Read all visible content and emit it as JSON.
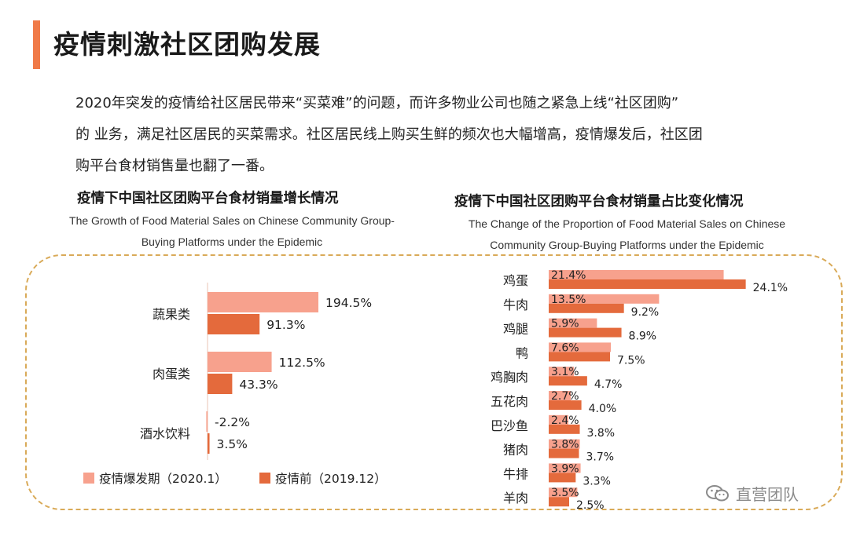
{
  "header": {
    "title": "疫情刺激社区团购发展"
  },
  "intro": {
    "lines": [
      "2020年突发的疫情给社区居民带来“买菜难”的问题，而许多物业公司也随之紧急上线“社区团购”",
      "的 业务，满足社区居民的买菜需求。社区居民线上购买生鲜的频次也大幅增高，疫情爆发后，社区团",
      "购平台食材销售量也翻了一番。"
    ]
  },
  "colors": {
    "accent": "#f07a48",
    "series_light": "#f7a18d",
    "series_dark": "#e46a3c",
    "dash": "#d9aa58"
  },
  "chart_data": [
    {
      "type": "bar",
      "orientation": "horizontal",
      "title": "疫情下中国社区团购平台食材销量增长情况",
      "subtitle": [
        "The Growth of Food Material Sales on Chinese Community Group-",
        "Buying Platforms under the Epidemic"
      ],
      "categories": [
        "蔬果类",
        "肉蛋类",
        "酒水饮料"
      ],
      "series": [
        {
          "name": "疫情爆发期（2020.1）",
          "values": [
            194.5,
            112.5,
            -2.2
          ],
          "labels": [
            "194.5%",
            "112.5%",
            "-2.2%"
          ]
        },
        {
          "name": "疫情前（2019.12）",
          "values": [
            91.3,
            43.3,
            3.5
          ],
          "labels": [
            "91.3%",
            "43.3%",
            "3.5%"
          ]
        }
      ],
      "unit": "%",
      "legend": "bottom"
    },
    {
      "type": "bar",
      "orientation": "horizontal",
      "title": "疫情下中国社区团购平台食材销量占比变化情况",
      "subtitle": [
        "The Change of the Proportion of Food Material Sales on Chinese",
        "Community Group-Buying Platforms under the Epidemic"
      ],
      "categories": [
        "鸡蛋",
        "牛肉",
        "鸡腿",
        "鸭",
        "鸡胸肉",
        "五花肉",
        "巴沙鱼",
        "猪肉",
        "牛排",
        "羊肉"
      ],
      "series": [
        {
          "values": [
            21.4,
            13.5,
            5.9,
            7.6,
            3.1,
            2.7,
            2.4,
            3.8,
            3.9,
            3.5
          ],
          "labels": [
            "21.4%",
            "13.5%",
            "5.9%",
            "7.6%",
            "3.1%",
            "2.7%",
            "2.4%",
            "3.8%",
            "3.9%",
            "3.5%"
          ]
        },
        {
          "values": [
            24.1,
            9.2,
            8.9,
            7.5,
            4.7,
            4.0,
            3.8,
            3.7,
            3.3,
            2.5
          ],
          "labels": [
            "24.1%",
            "9.2%",
            "8.9%",
            "7.5%",
            "4.7%",
            "4.0%",
            "3.8%",
            "3.7%",
            "3.3%",
            "2.5%"
          ]
        }
      ],
      "unit": "%"
    }
  ],
  "watermark": {
    "text": "直营团队",
    "icon": "wechat-icon"
  }
}
